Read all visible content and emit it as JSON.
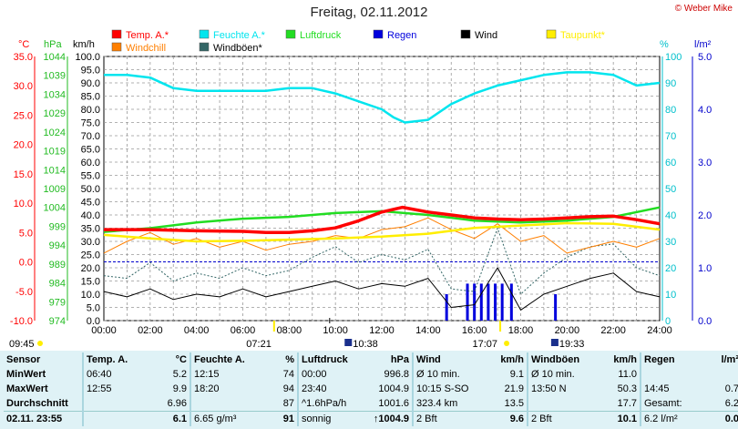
{
  "header": {
    "title": "Freitag, 02.11.2012",
    "credit": "© Weber Mike"
  },
  "legend": [
    {
      "label": "Temp. A.*",
      "color": "#ff0000"
    },
    {
      "label": "Feuchte A.*",
      "color": "#00e5ee"
    },
    {
      "label": "Luftdruck",
      "color": "#22dd22"
    },
    {
      "label": "Regen",
      "color": "#0000dd"
    },
    {
      "label": "Wind",
      "color": "#000000"
    },
    {
      "label": "Taupunkt*",
      "color": "#ffee00"
    },
    {
      "label": "Windchill",
      "color": "#ff7f00"
    },
    {
      "label": "Windböen*",
      "color": "#336666"
    }
  ],
  "axis_units": {
    "temp": "°C",
    "pressure": "hPa",
    "wind": "km/h",
    "humidity": "%",
    "rain": "l/m²"
  },
  "sun": {
    "sunrise": "07:21",
    "sunset": "17:07",
    "moonrise": "10:38",
    "moonset": "19:33",
    "now": "09:45"
  },
  "chart_data": {
    "type": "line",
    "x_label_values": [
      "00:00",
      "02:00",
      "04:00",
      "06:00",
      "08:00",
      "10:00",
      "12:00",
      "14:00",
      "16:00",
      "18:00",
      "20:00",
      "22:00",
      "24:00"
    ],
    "axes": {
      "temp": {
        "min": -10,
        "max": 35,
        "ticks": [
          "35.0",
          "30.0",
          "25.0",
          "20.0",
          "15.0",
          "10.0",
          "5.0",
          "0.0",
          "-5.0",
          "-10.0"
        ]
      },
      "pressure": {
        "min": 974,
        "max": 1044,
        "ticks": [
          "1044",
          "1039",
          "1034",
          "1029",
          "1024",
          "1019",
          "1014",
          "1009",
          "1004",
          "999",
          "994",
          "989",
          "984",
          "979",
          "974"
        ]
      },
      "wind": {
        "min": 0,
        "max": 100,
        "ticks": [
          "100.0",
          "95.0",
          "90.0",
          "85.0",
          "80.0",
          "75.0",
          "70.0",
          "65.0",
          "60.0",
          "55.0",
          "50.0",
          "45.0",
          "40.0",
          "35.0",
          "30.0",
          "25.0",
          "20.0",
          "15.0",
          "10.0",
          "5.0",
          "0.0"
        ]
      },
      "humidity": {
        "min": 0,
        "max": 100,
        "ticks": [
          "100",
          "90",
          "80",
          "70",
          "60",
          "50",
          "40",
          "30",
          "20",
          "10",
          "0"
        ]
      },
      "rain": {
        "min": 0,
        "max": 5,
        "ticks": [
          "5.0",
          "4.0",
          "3.0",
          "2.0",
          "1.0",
          "0.0"
        ]
      }
    },
    "series": [
      {
        "name": "Temp. A.*",
        "axis": "temp",
        "x": [
          0,
          2,
          4,
          6,
          7,
          8,
          9,
          10,
          11,
          12,
          12.9,
          14,
          15,
          16,
          17,
          18,
          19,
          20,
          21,
          22,
          23,
          24
        ],
        "y": [
          5.5,
          5.5,
          5.3,
          5.2,
          5.0,
          5.0,
          5.3,
          5.8,
          7.0,
          8.5,
          9.3,
          8.5,
          8.0,
          7.5,
          7.3,
          7.2,
          7.3,
          7.5,
          7.7,
          7.8,
          7.2,
          6.5
        ]
      },
      {
        "name": "Feuchte A.*",
        "axis": "humidity",
        "x": [
          0,
          1,
          2,
          3,
          4,
          5,
          6,
          7,
          8,
          9,
          10,
          11,
          12,
          12.5,
          13,
          14,
          15,
          16,
          17,
          18,
          19,
          20,
          21,
          22,
          23,
          24
        ],
        "y": [
          93,
          93,
          92,
          88,
          87,
          87,
          87,
          87,
          88,
          88,
          86,
          83,
          80,
          77,
          75,
          76,
          82,
          86,
          89,
          91,
          93,
          94,
          94,
          93,
          89,
          90
        ]
      },
      {
        "name": "Luftdruck",
        "axis": "pressure",
        "x": [
          0,
          2,
          4,
          6,
          8,
          10,
          12,
          14,
          16,
          18,
          20,
          22,
          24
        ],
        "y": [
          997.5,
          998.5,
          1000,
          1001,
          1001.5,
          1002.5,
          1003,
          1002,
          1000.5,
          1000,
          1000.5,
          1001.5,
          1004
        ]
      },
      {
        "name": "Taupunkt*",
        "axis": "temp",
        "x": [
          0,
          2,
          4,
          6,
          8,
          10,
          12,
          14,
          16,
          18,
          20,
          22,
          24
        ],
        "y": [
          4.6,
          4.0,
          3.5,
          3.6,
          3.8,
          4.0,
          4.3,
          4.8,
          5.8,
          6.2,
          6.6,
          6.5,
          5.5
        ]
      },
      {
        "name": "Windchill",
        "axis": "temp",
        "x": [
          0,
          1,
          2,
          3,
          4,
          5,
          6,
          7,
          8,
          9,
          10,
          11,
          12,
          13,
          14,
          15,
          16,
          17,
          18,
          19,
          20,
          21,
          22,
          23,
          24
        ],
        "y": [
          1.5,
          3.5,
          5.0,
          3.0,
          4.0,
          2.5,
          3.5,
          2.0,
          3.0,
          3.5,
          4.5,
          4.0,
          5.5,
          6.0,
          7.5,
          5.5,
          4.0,
          6.5,
          3.5,
          4.5,
          1.5,
          2.5,
          3.5,
          2.5,
          4.0
        ]
      },
      {
        "name": "Wind",
        "axis": "wind",
        "x": [
          0,
          1,
          2,
          3,
          4,
          5,
          6,
          7,
          8,
          9,
          10,
          11,
          12,
          13,
          14,
          15,
          16,
          17,
          18,
          19,
          20,
          21,
          22,
          23,
          24
        ],
        "y": [
          11,
          9,
          12,
          8,
          10,
          9,
          12,
          9,
          11,
          13,
          15,
          12,
          14,
          13,
          16,
          5,
          6,
          20,
          4,
          10,
          13,
          16,
          18,
          11,
          9
        ]
      },
      {
        "name": "Windböen*",
        "axis": "wind",
        "x": [
          0,
          1,
          2,
          3,
          4,
          5,
          6,
          7,
          8,
          9,
          10,
          11,
          12,
          13,
          14,
          15,
          16,
          17,
          18,
          19,
          20,
          21,
          22,
          23,
          24
        ],
        "y": [
          17,
          16,
          22,
          15,
          18,
          16,
          20,
          17,
          19,
          24,
          28,
          22,
          25,
          23,
          27,
          12,
          11,
          35,
          10,
          18,
          24,
          28,
          29,
          20,
          17
        ]
      }
    ],
    "rain_bars": {
      "axis": "rain",
      "x": [
        14.8,
        15.7,
        16.0,
        16.3,
        16.6,
        16.9,
        17.2,
        17.6,
        19.5
      ],
      "y": [
        0.5,
        0.7,
        0.7,
        0.7,
        0.7,
        0.7,
        0.7,
        0.7,
        0.5
      ]
    },
    "reference_lines": [
      {
        "axis": "temp",
        "value": 0.0,
        "color": "#0000cc"
      }
    ]
  },
  "stats": {
    "headers": [
      "Sensor",
      "Temp. A.",
      "°C",
      "Feuchte A.",
      "%",
      "Luftdruck",
      "hPa",
      "Wind",
      "km/h",
      "Windböen",
      "km/h",
      "Regen",
      "l/m²"
    ],
    "rows": [
      [
        "MinWert",
        "06:40",
        "5.2",
        "12:15",
        "74",
        "00:00",
        "996.8",
        "Ø 10 min.",
        "9.1",
        "Ø 10 min.",
        "11.0",
        "",
        ""
      ],
      [
        "MaxWert",
        "12:55",
        "9.9",
        "18:20",
        "94",
        "23:40",
        "1004.9",
        "10:15  S-SO",
        "21.9",
        "13:50  N",
        "50.3",
        "14:45",
        "0.7"
      ],
      [
        "Durchschnitt",
        "",
        "6.96",
        "",
        "87",
        "^1.6hPa/h",
        "1001.6",
        "323.4 km",
        "13.5",
        "",
        "17.7",
        "Gesamt:",
        "6.2"
      ],
      [
        "02.11.  23:55",
        "",
        "6.1",
        "6.65 g/m³",
        "91",
        "sonnig",
        "↑1004.9",
        "2 Bft",
        "9.6",
        "2 Bft",
        "10.1",
        "6.2 l/m²",
        "0.0"
      ]
    ]
  }
}
